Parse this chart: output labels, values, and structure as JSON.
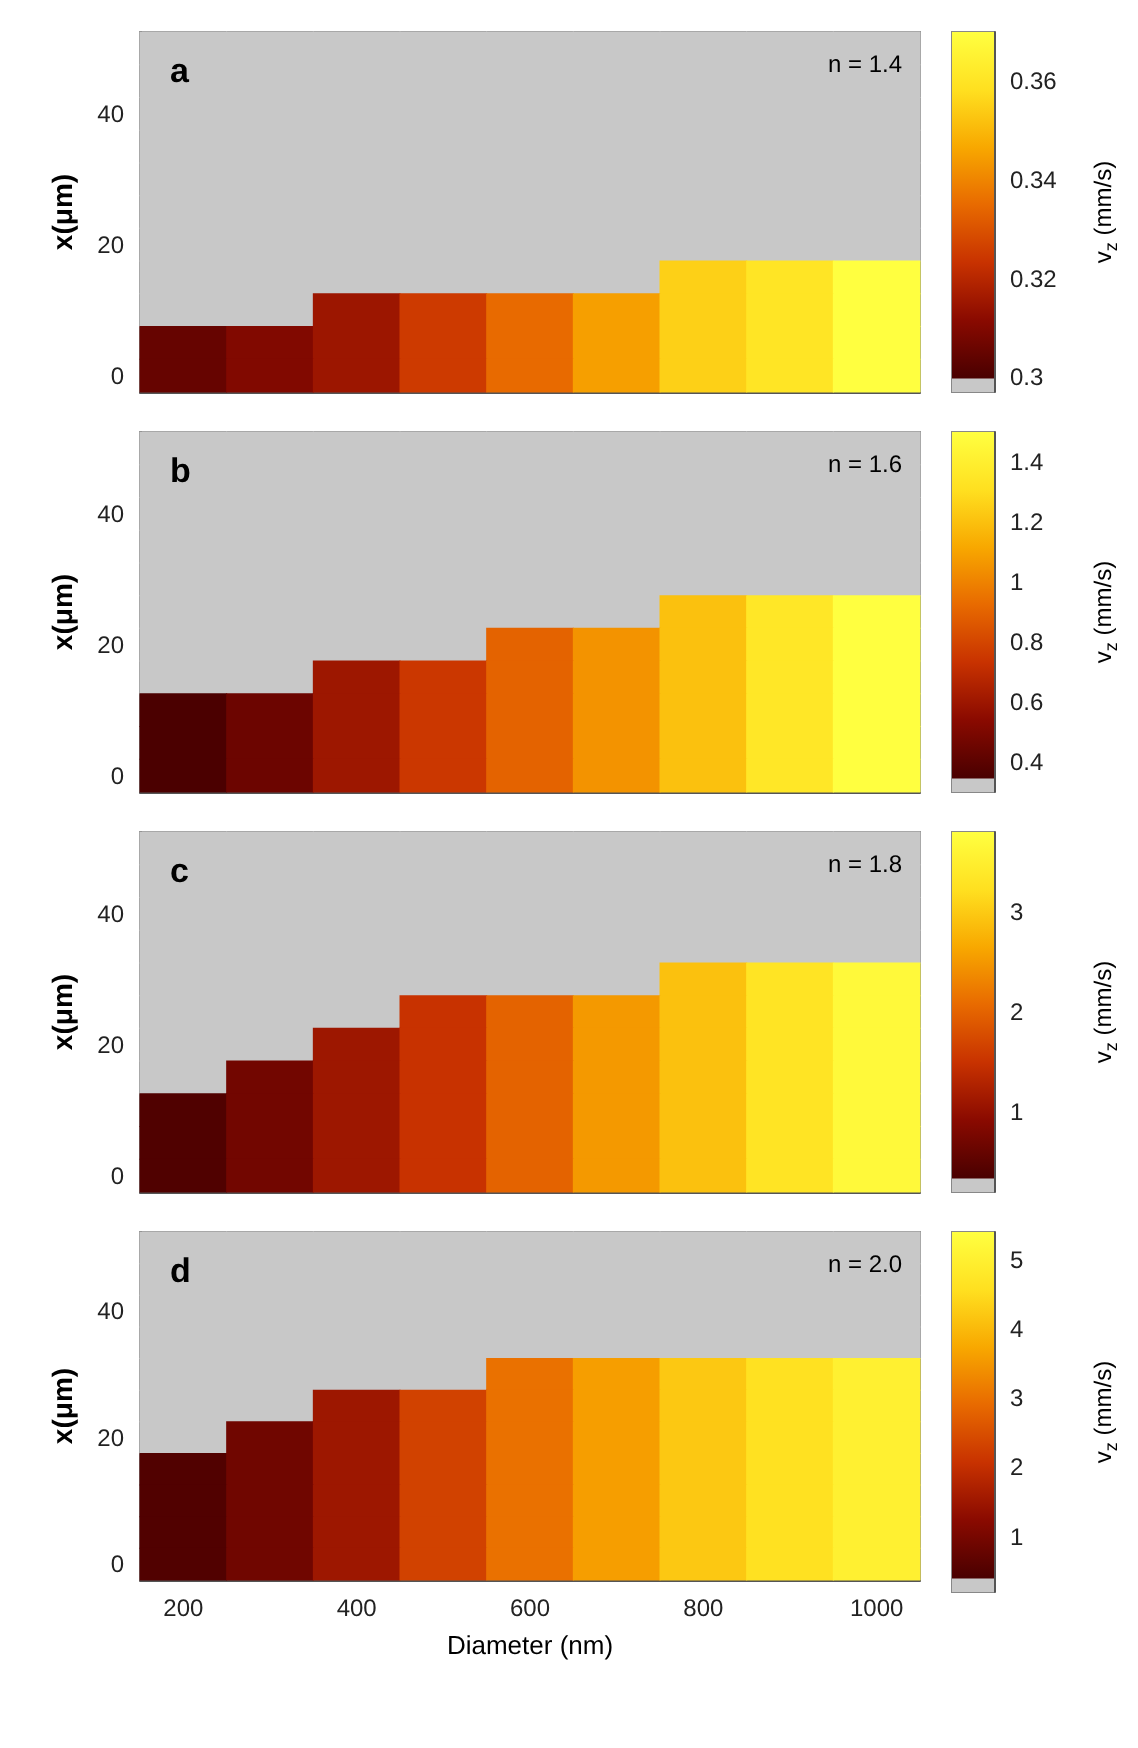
{
  "chart_data": [
    {
      "type": "heatmap",
      "title": "a",
      "annotations": [
        "n = 1.4"
      ],
      "ylabel": "x(μm)",
      "clabel": "v$_{z}$ (mm/s)",
      "tick_labels": "y",
      "categories": [
        "200",
        null,
        "400",
        null,
        "600",
        null,
        "800",
        null,
        "1000"
      ],
      "y_categories": [
        null,
        null,
        "40",
        null,
        null,
        null,
        "20",
        null,
        null,
        null,
        "0"
      ],
      "clim": [
        0.297,
        0.37
      ],
      "cticks": [
        0.3,
        0.32,
        0.34,
        0.36
      ],
      "cells": [
        [
          0.297,
          0.297,
          0.297,
          0.297,
          0.297,
          0.297,
          0.297,
          0.297,
          0.297
        ],
        [
          0.297,
          0.297,
          0.297,
          0.297,
          0.297,
          0.297,
          0.297,
          0.297,
          0.297
        ],
        [
          0.297,
          0.297,
          0.297,
          0.297,
          0.297,
          0.297,
          0.297,
          0.297,
          0.297
        ],
        [
          0.297,
          0.297,
          0.297,
          0.297,
          0.297,
          0.297,
          0.297,
          0.297,
          0.297
        ],
        [
          0.297,
          0.297,
          0.297,
          0.297,
          0.297,
          0.297,
          0.297,
          0.297,
          0.297
        ],
        [
          0.297,
          0.297,
          0.297,
          0.297,
          0.297,
          0.297,
          0.297,
          0.297,
          0.297
        ],
        [
          0.297,
          0.297,
          0.297,
          0.297,
          0.297,
          0.297,
          0.297,
          0.297,
          0.297
        ],
        [
          0.297,
          0.297,
          0.297,
          0.297,
          0.297,
          0.297,
          0.355,
          0.36,
          0.37
        ],
        [
          0.297,
          0.297,
          0.315,
          0.325,
          0.335,
          0.345,
          0.355,
          0.36,
          0.37
        ],
        [
          0.305,
          0.31,
          0.315,
          0.325,
          0.335,
          0.345,
          0.355,
          0.36,
          0.37
        ],
        [
          0.305,
          0.31,
          0.315,
          0.325,
          0.335,
          0.345,
          0.355,
          0.36,
          0.37
        ]
      ]
    },
    {
      "type": "heatmap",
      "title": "b",
      "annotations": [
        "n = 1.6"
      ],
      "ylabel": "x(μm)",
      "clabel": "v$_{z}$ (mm/s)",
      "tick_labels": "y",
      "categories": [
        "200",
        null,
        "400",
        null,
        "600",
        null,
        "800",
        null,
        "1000"
      ],
      "y_categories": [
        null,
        null,
        "40",
        null,
        null,
        null,
        "20",
        null,
        null,
        null,
        "0"
      ],
      "clim": [
        0.3,
        1.5
      ],
      "cticks": [
        0.4,
        0.6,
        0.8,
        1,
        1.2,
        1.4
      ],
      "cells": [
        [
          0.3,
          0.3,
          0.3,
          0.3,
          0.3,
          0.3,
          0.3,
          0.3,
          0.3
        ],
        [
          0.3,
          0.3,
          0.3,
          0.3,
          0.3,
          0.3,
          0.3,
          0.3,
          0.3
        ],
        [
          0.3,
          0.3,
          0.3,
          0.3,
          0.3,
          0.3,
          0.3,
          0.3,
          0.3
        ],
        [
          0.3,
          0.3,
          0.3,
          0.3,
          0.3,
          0.3,
          0.3,
          0.3,
          0.3
        ],
        [
          0.3,
          0.3,
          0.3,
          0.3,
          0.3,
          0.3,
          0.3,
          0.3,
          0.3
        ],
        [
          0.3,
          0.3,
          0.3,
          0.3,
          0.3,
          0.3,
          1.2,
          1.35,
          1.5
        ],
        [
          0.3,
          0.3,
          0.3,
          0.3,
          0.9,
          1.05,
          1.2,
          1.35,
          1.5
        ],
        [
          0.3,
          0.3,
          0.6,
          0.75,
          0.9,
          1.05,
          1.2,
          1.35,
          1.5
        ],
        [
          0.35,
          0.45,
          0.6,
          0.75,
          0.9,
          1.05,
          1.2,
          1.35,
          1.5
        ],
        [
          0.35,
          0.45,
          0.6,
          0.75,
          0.9,
          1.05,
          1.2,
          1.35,
          1.5
        ],
        [
          0.35,
          0.45,
          0.6,
          0.75,
          0.9,
          1.05,
          1.2,
          1.35,
          1.5
        ]
      ]
    },
    {
      "type": "heatmap",
      "title": "c",
      "annotations": [
        "n = 1.8"
      ],
      "ylabel": "x(μm)",
      "clabel": "v$_{z}$ (mm/s)",
      "tick_labels": "y",
      "categories": [
        "200",
        null,
        "400",
        null,
        "600",
        null,
        "800",
        null,
        "1000"
      ],
      "y_categories": [
        null,
        null,
        "40",
        null,
        null,
        null,
        "20",
        null,
        null,
        null,
        "0"
      ],
      "clim": [
        0.2,
        3.8
      ],
      "cticks": [
        1,
        2,
        3
      ],
      "cells": [
        [
          0.2,
          0.2,
          0.2,
          0.2,
          0.2,
          0.2,
          0.2,
          0.2,
          0.2
        ],
        [
          0.2,
          0.2,
          0.2,
          0.2,
          0.2,
          0.2,
          0.2,
          0.2,
          0.2
        ],
        [
          0.2,
          0.2,
          0.2,
          0.2,
          0.2,
          0.2,
          0.2,
          0.2,
          0.2
        ],
        [
          0.2,
          0.2,
          0.2,
          0.2,
          0.2,
          0.2,
          0.2,
          0.2,
          0.2
        ],
        [
          0.2,
          0.2,
          0.2,
          0.2,
          0.2,
          0.2,
          2.9,
          3.3,
          3.7
        ],
        [
          0.2,
          0.2,
          0.2,
          1.5,
          2.0,
          2.5,
          2.9,
          3.3,
          3.7
        ],
        [
          0.2,
          0.2,
          1.1,
          1.5,
          2.0,
          2.5,
          2.9,
          3.3,
          3.7
        ],
        [
          0.2,
          0.7,
          1.1,
          1.5,
          2.0,
          2.5,
          2.9,
          3.3,
          3.7
        ],
        [
          0.4,
          0.7,
          1.1,
          1.5,
          2.0,
          2.5,
          2.9,
          3.3,
          3.7
        ],
        [
          0.4,
          0.7,
          1.1,
          1.5,
          2.0,
          2.5,
          2.9,
          3.3,
          3.7
        ],
        [
          0.4,
          0.7,
          1.1,
          1.5,
          2.0,
          2.5,
          2.9,
          3.3,
          3.7
        ]
      ]
    },
    {
      "type": "heatmap",
      "title": "d",
      "annotations": [
        "n = 2.0"
      ],
      "xlabel": "Diameter (nm)",
      "ylabel": "x(μm)",
      "clabel": "v$_{z}$ (mm/s)",
      "categories": [
        "200",
        null,
        "400",
        null,
        "600",
        null,
        "800",
        null,
        "1000"
      ],
      "y_categories": [
        null,
        null,
        "40",
        null,
        null,
        null,
        "20",
        null,
        null,
        null,
        "0"
      ],
      "clim": [
        0.2,
        5.4
      ],
      "cticks": [
        1,
        2,
        3,
        4,
        5
      ],
      "cells": [
        [
          0.2,
          0.2,
          0.2,
          0.2,
          0.2,
          0.2,
          0.2,
          0.2,
          0.2
        ],
        [
          0.2,
          0.2,
          0.2,
          0.2,
          0.2,
          0.2,
          0.2,
          0.2,
          0.2
        ],
        [
          0.2,
          0.2,
          0.2,
          0.2,
          0.2,
          0.2,
          0.2,
          0.2,
          0.2
        ],
        [
          0.2,
          0.2,
          0.2,
          0.2,
          0.2,
          0.2,
          0.2,
          0.2,
          0.2
        ],
        [
          0.2,
          0.2,
          0.2,
          0.2,
          3.0,
          3.6,
          4.2,
          4.6,
          5.0
        ],
        [
          0.2,
          0.2,
          1.5,
          2.3,
          3.0,
          3.6,
          4.2,
          4.6,
          5.0
        ],
        [
          0.2,
          0.9,
          1.5,
          2.3,
          3.0,
          3.6,
          4.2,
          4.6,
          5.0
        ],
        [
          0.5,
          0.9,
          1.5,
          2.3,
          3.0,
          3.6,
          4.2,
          4.6,
          5.0
        ],
        [
          0.5,
          0.9,
          1.5,
          2.3,
          3.0,
          3.6,
          4.2,
          4.6,
          5.0
        ],
        [
          0.5,
          0.9,
          1.5,
          2.3,
          3.0,
          3.6,
          4.2,
          4.6,
          5.0
        ],
        [
          0.5,
          0.9,
          1.5,
          2.3,
          3.0,
          3.6,
          4.2,
          4.6,
          5.0
        ]
      ]
    }
  ]
}
